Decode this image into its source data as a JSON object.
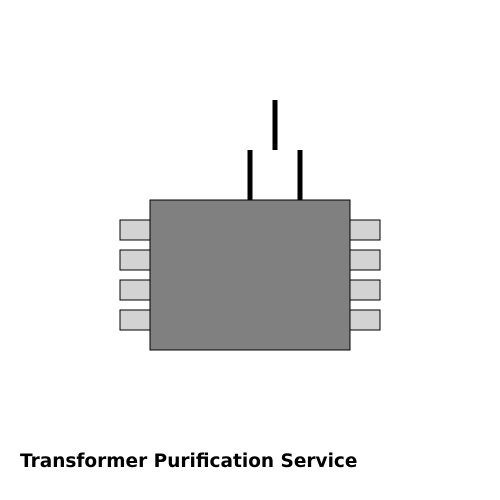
{
  "caption": "Transformer Purification Service",
  "colors": {
    "body": "#808080",
    "pin": "#d3d3d3",
    "outline": "#000000",
    "lead": "#000000",
    "background": "#ffffff"
  },
  "component": {
    "pins_left": 4,
    "pins_right": 4,
    "top_leads": 3
  }
}
